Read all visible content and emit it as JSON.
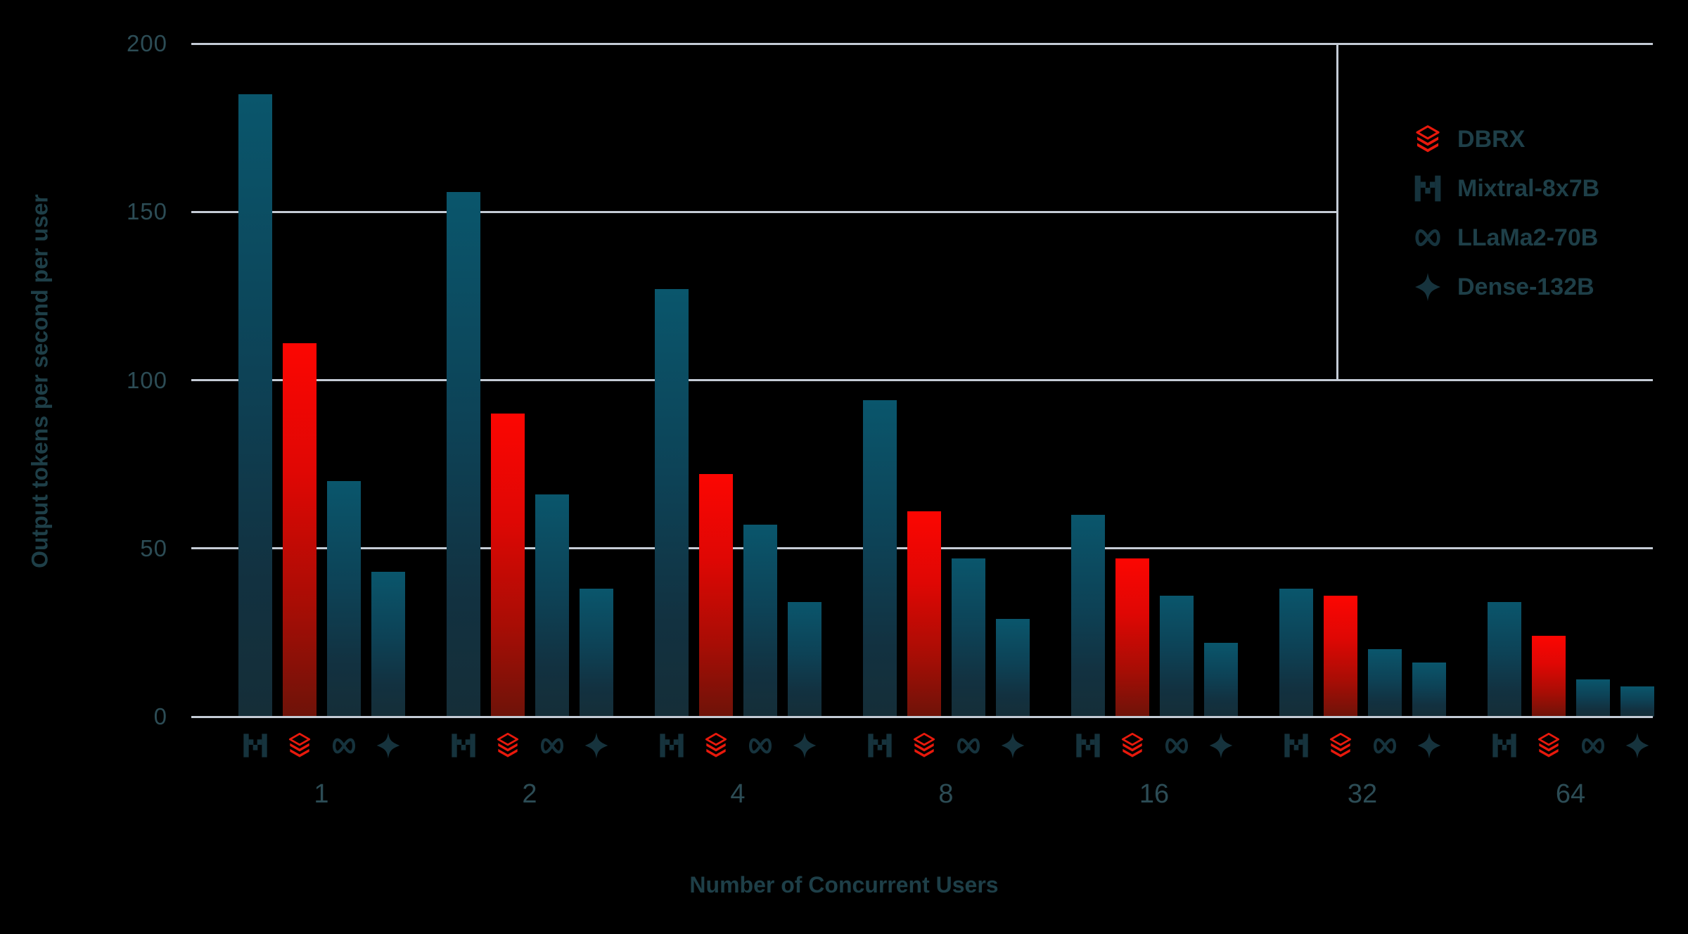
{
  "colors": {
    "background": "#000000",
    "grid": "#c5ccd6",
    "tick_label": "#2c4c55",
    "axis_title": "#1e3f48",
    "legend_label": "#1e3f48",
    "icon_teal": "#16333d",
    "icon_red": "#e8190c",
    "teal_gradient": [
      "#0a566c",
      "#0d4256",
      "#123140",
      "#152e38"
    ],
    "red_gradient": [
      "#fc0602",
      "#df0704",
      "#a80d05",
      "#6e1309"
    ]
  },
  "chart_data": {
    "type": "bar",
    "title": "",
    "xlabel": "Number of Concurrent Users",
    "ylabel": "Output tokens per second per user",
    "categories": [
      "1",
      "2",
      "4",
      "8",
      "16",
      "32",
      "64"
    ],
    "yticks": [
      "0",
      "50",
      "100",
      "150",
      "200"
    ],
    "ylim": [
      0,
      200
    ],
    "grid": "horizontal",
    "legend_position": "top-right-boxed",
    "series": [
      {
        "name": "Mixtral-8x7B",
        "icon": "mistral-m-icon",
        "color_role": "teal",
        "values": [
          185,
          156,
          127,
          94,
          60,
          38,
          34
        ]
      },
      {
        "name": "DBRX",
        "icon": "databricks-icon",
        "color_role": "red",
        "values": [
          111,
          90,
          72,
          61,
          47,
          36,
          24
        ]
      },
      {
        "name": "LLaMa2-70B",
        "icon": "meta-infinity-icon",
        "color_role": "teal",
        "values": [
          70,
          66,
          57,
          47,
          36,
          20,
          11
        ]
      },
      {
        "name": "Dense-132B",
        "icon": "four-point-star-icon",
        "color_role": "teal",
        "values": [
          43,
          38,
          34,
          29,
          22,
          16,
          9
        ]
      }
    ],
    "legend": [
      {
        "label": "DBRX",
        "icon": "databricks-icon"
      },
      {
        "label": "Mixtral-8x7B",
        "icon": "mistral-m-icon"
      },
      {
        "label": "LLaMa2-70B",
        "icon": "meta-infinity-icon"
      },
      {
        "label": "Dense-132B",
        "icon": "four-point-star-icon"
      }
    ]
  }
}
